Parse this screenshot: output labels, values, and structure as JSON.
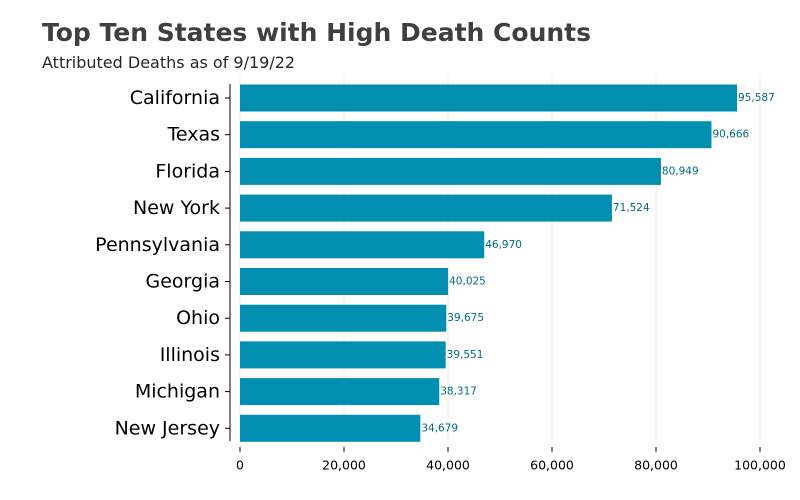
{
  "header": {
    "title": "Top Ten States with High Death Counts",
    "subtitle": "Attributed Deaths as of 9/19/22"
  },
  "colors": {
    "bar": "#008fb0",
    "data_label": "#006b84",
    "axis": "#000000",
    "grid": "#eeeeee"
  },
  "chart_data": {
    "type": "bar",
    "orientation": "horizontal",
    "title": "Top Ten States with High Death Counts",
    "subtitle": "Attributed Deaths as of 9/19/22",
    "xlabel": "",
    "ylabel": "",
    "xlim": [
      0,
      100000
    ],
    "x_ticks": [
      0,
      20000,
      40000,
      60000,
      80000,
      100000
    ],
    "x_tick_labels": [
      "0",
      "20,000",
      "40,000",
      "60,000",
      "80,000",
      "100,000"
    ],
    "grid": "vertical, faint",
    "categories": [
      "California",
      "Texas",
      "Florida",
      "New York",
      "Pennsylvania",
      "Georgia",
      "Ohio",
      "Illinois",
      "Michigan",
      "New Jersey"
    ],
    "values": [
      95587,
      90666,
      80949,
      71524,
      46970,
      40025,
      39675,
      39551,
      38317,
      34679
    ],
    "data_labels": [
      "95,587",
      "90,666",
      "80,949",
      "71,524",
      "46,970",
      "40,025",
      "39,675",
      "39,551",
      "38,317",
      "34,679"
    ]
  }
}
